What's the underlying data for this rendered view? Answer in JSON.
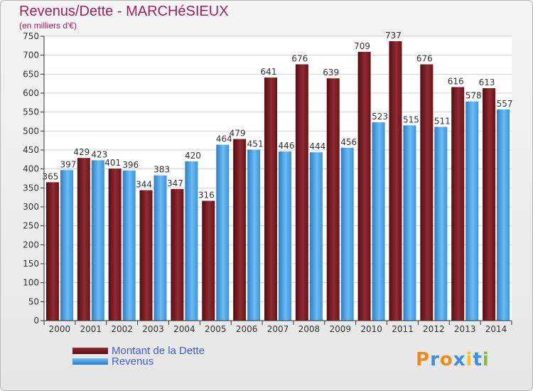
{
  "chart_data": {
    "type": "bar",
    "title": "Revenus/Dette - MARCHéSIEUX",
    "subtitle": "(en milliers d'€)",
    "categories": [
      "2000",
      "2001",
      "2002",
      "2003",
      "2004",
      "2005",
      "2006",
      "2007",
      "2008",
      "2009",
      "2010",
      "2011",
      "2012",
      "2013",
      "2014"
    ],
    "series": [
      {
        "name": "Montant de la Dette",
        "values": [
          365,
          429,
          401,
          344,
          347,
          316,
          479,
          641,
          676,
          639,
          709,
          737,
          676,
          616,
          613
        ],
        "color": "#7a1a22"
      },
      {
        "name": "Revenus",
        "values": [
          397,
          423,
          396,
          383,
          420,
          464,
          451,
          446,
          444,
          456,
          523,
          515,
          511,
          578,
          557
        ],
        "color": "#4aa3e6"
      }
    ],
    "ylim": [
      0,
      750
    ],
    "yticks": [
      0,
      50,
      100,
      150,
      200,
      250,
      300,
      350,
      400,
      450,
      500,
      550,
      600,
      650,
      700,
      750
    ],
    "grid": true,
    "legend_position": "bottom-left"
  },
  "logo": {
    "letters": [
      "P",
      "r",
      "o",
      "x",
      "i",
      "t",
      "i"
    ],
    "colors": [
      "#f08a1e",
      "#3a8fe0",
      "#f08a1e",
      "#3a8fe0",
      "#f5c21b",
      "#3a8fe0",
      "#7cc242"
    ]
  }
}
